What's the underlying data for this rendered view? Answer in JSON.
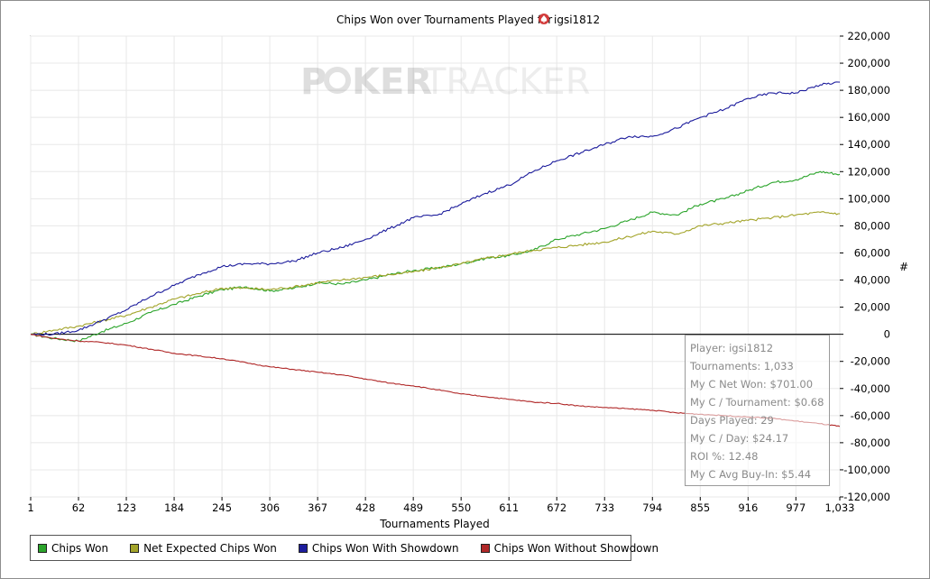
{
  "watermark": {
    "left": "P",
    "chip": "O",
    "right": "KER",
    "light": "TRACKER"
  },
  "chart_data": {
    "type": "line",
    "title": "Chips Won over Tournaments Played for",
    "player": "igsi1812",
    "xlabel": "Tournaments Played",
    "ylabel": "#",
    "xlim": [
      1,
      1033
    ],
    "ylim": [
      -120000,
      220000
    ],
    "xticks": [
      "1",
      "62",
      "123",
      "184",
      "245",
      "306",
      "367",
      "428",
      "489",
      "550",
      "611",
      "672",
      "733",
      "794",
      "855",
      "916",
      "977",
      "1,033"
    ],
    "yticks": [
      -120000,
      -100000,
      -80000,
      -60000,
      -40000,
      -20000,
      0,
      20000,
      40000,
      60000,
      80000,
      100000,
      120000,
      140000,
      160000,
      180000,
      200000,
      220000
    ],
    "ytick_labels": [
      "-120,000",
      "-100,000",
      "-80,000",
      "-60,000",
      "-40,000",
      "-20,000",
      "0",
      "20,000",
      "40,000",
      "60,000",
      "80,000",
      "100,000",
      "120,000",
      "140,000",
      "160,000",
      "180,000",
      "200,000",
      "220,000"
    ],
    "grid": true,
    "legend_position": "bottom-left",
    "x": [
      1,
      30,
      62,
      92,
      123,
      154,
      184,
      215,
      245,
      276,
      306,
      337,
      367,
      398,
      428,
      459,
      489,
      520,
      550,
      581,
      611,
      642,
      672,
      703,
      733,
      764,
      794,
      825,
      855,
      886,
      916,
      947,
      977,
      1008,
      1033
    ],
    "series": [
      {
        "name": "Chips Won",
        "color": "#2ba42b",
        "values": [
          0,
          -3000,
          -5000,
          2000,
          8000,
          16000,
          22000,
          28000,
          33000,
          35000,
          32000,
          34000,
          38000,
          37000,
          40000,
          44000,
          47000,
          49000,
          52000,
          56000,
          58000,
          62000,
          70000,
          74000,
          78000,
          84000,
          90000,
          88000,
          96000,
          100000,
          106000,
          112000,
          114000,
          120000,
          118000
        ]
      },
      {
        "name": "Net Expected Chips Won",
        "color": "#a3a42a",
        "values": [
          0,
          3000,
          6000,
          10000,
          14000,
          20000,
          26000,
          30000,
          34000,
          34000,
          33000,
          35000,
          38000,
          40000,
          42000,
          44000,
          46000,
          49000,
          52000,
          56000,
          59000,
          62000,
          64000,
          66000,
          68000,
          72000,
          76000,
          74000,
          80000,
          82000,
          84000,
          86000,
          88000,
          90000,
          89000
        ]
      },
      {
        "name": "Chips Won With Showdown",
        "color": "#1c1c9c",
        "values": [
          0,
          0,
          3000,
          10000,
          18000,
          28000,
          36000,
          44000,
          50000,
          52000,
          52000,
          54000,
          60000,
          64000,
          70000,
          78000,
          86000,
          88000,
          96000,
          104000,
          110000,
          120000,
          128000,
          134000,
          140000,
          146000,
          146000,
          152000,
          160000,
          166000,
          174000,
          178000,
          178000,
          184000,
          186000
        ]
      },
      {
        "name": "Chips Won Without Showdown",
        "color": "#b02828",
        "values": [
          0,
          -3000,
          -5000,
          -6000,
          -8000,
          -11000,
          -14000,
          -16000,
          -18000,
          -21000,
          -24000,
          -26000,
          -28000,
          -30000,
          -33000,
          -36000,
          -38000,
          -41000,
          -44000,
          -46000,
          -48000,
          -50000,
          -51000,
          -53000,
          -54000,
          -55000,
          -56000,
          -58000,
          -59000,
          -60000,
          -61000,
          -62000,
          -64000,
          -66000,
          -68000
        ]
      }
    ]
  },
  "stats": [
    "Player: igsi1812",
    "Tournaments: 1,033",
    "My C Net Won: $701.00",
    "My C / Tournament: $0.68",
    "Days Played: 29",
    "My C / Day: $24.17",
    "ROI %: 12.48",
    "My C Avg Buy-In: $5.44"
  ]
}
